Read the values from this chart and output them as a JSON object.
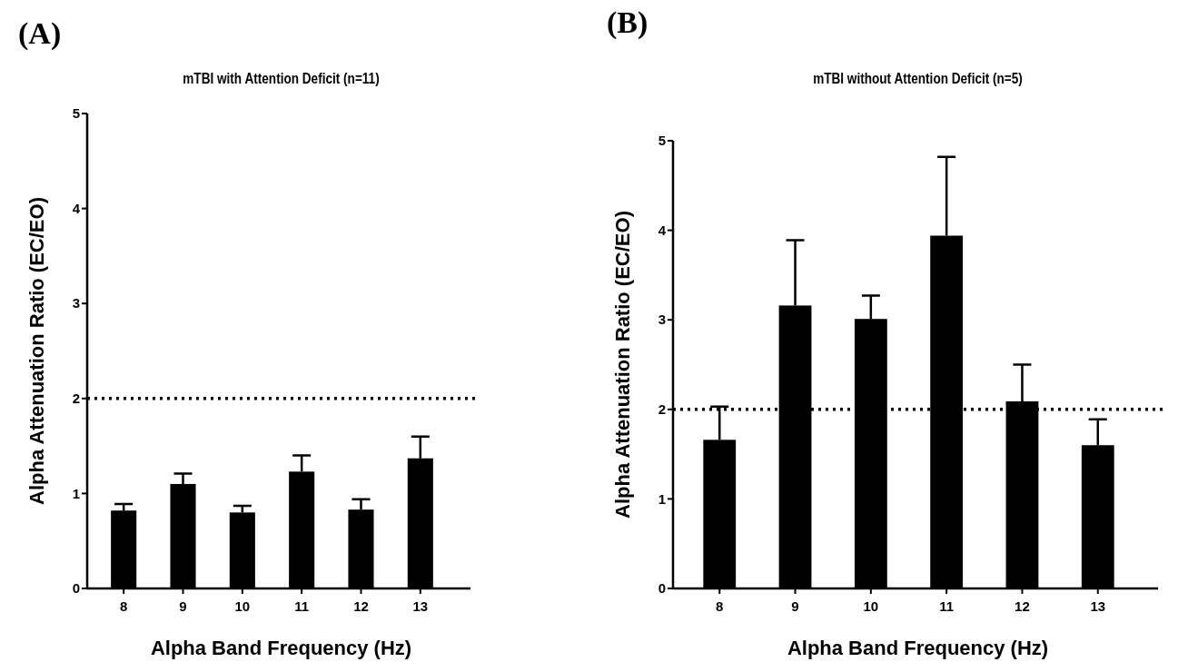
{
  "chart_data": [
    {
      "type": "bar",
      "title": "mTBI with Attention Deficit (n=11)",
      "xlabel": "Alpha Band Frequency  (Hz)",
      "ylabel": "Alpha Attenuation Ratio (EC/EO)",
      "annotations": [
        "(A)"
      ],
      "categories": [
        "8",
        "9",
        "10",
        "11",
        "12",
        "13"
      ],
      "values": [
        0.82,
        1.1,
        0.8,
        1.23,
        0.83,
        1.37
      ],
      "errors": [
        [
          0.82,
          0.89
        ],
        [
          1.1,
          1.21
        ],
        [
          0.8,
          0.87
        ],
        [
          1.23,
          1.4
        ],
        [
          0.83,
          0.94
        ],
        [
          1.37,
          1.6
        ]
      ],
      "color": "#000000",
      "ylim": [
        0,
        5
      ],
      "yticks": [
        0,
        1,
        2,
        3,
        4,
        5
      ],
      "grid": false,
      "ref_lines": [
        {
          "axis": "y",
          "value": 2,
          "label": null,
          "line_style": "dotted"
        }
      ]
    },
    {
      "type": "bar",
      "title": "mTBI without Attention Deficit (n=5)",
      "xlabel": "Alpha Band Frequency  (Hz)",
      "ylabel": "Alpha Attenuation Ratio (EC/EO)",
      "annotations": [
        "(B)"
      ],
      "categories": [
        "8",
        "9",
        "10",
        "11",
        "12",
        "13"
      ],
      "values": [
        1.66,
        3.16,
        3.01,
        3.94,
        2.09,
        1.6
      ],
      "errors": [
        [
          1.66,
          2.03
        ],
        [
          3.16,
          3.89
        ],
        [
          3.01,
          3.27
        ],
        [
          3.94,
          4.82
        ],
        [
          2.09,
          2.5
        ],
        [
          1.6,
          1.89
        ]
      ],
      "color": "#000000",
      "ylim": [
        0,
        5
      ],
      "yticks": [
        0,
        1,
        2,
        3,
        4,
        5
      ],
      "grid": false,
      "ref_lines": [
        {
          "axis": "y",
          "value": 2,
          "label": null,
          "line_style": "dotted"
        }
      ]
    }
  ]
}
